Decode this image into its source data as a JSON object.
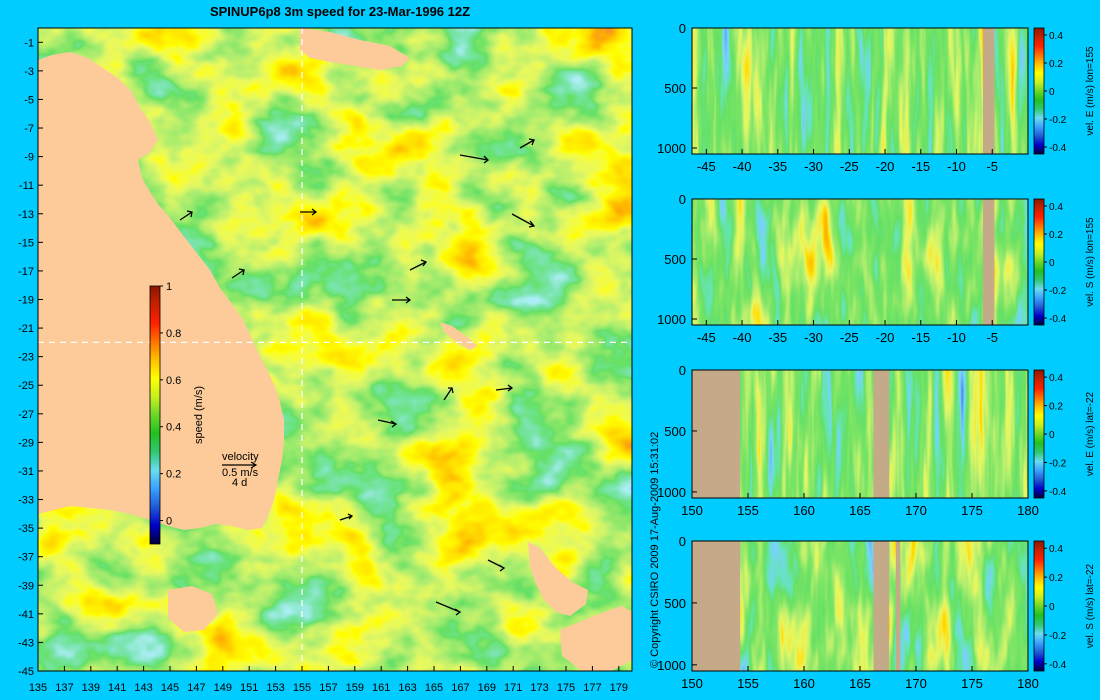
{
  "title": "SPINUP6p8 3m speed for 23-Mar-1996 12Z",
  "copyright": "© Copyright CSIRO 2009   17-Aug-2009 15:31:02",
  "colors": {
    "background": "#00ccff",
    "land": "#fccb99",
    "section_land": "#c4aa88",
    "section_axis": "#000000"
  },
  "colormap": [
    "#00003a",
    "#0000c8",
    "#1e5ad8",
    "#3aa0ff",
    "#6adcf0",
    "#30c870",
    "#22c020",
    "#6cd828",
    "#c8f020",
    "#ffff00",
    "#ffc000",
    "#ff7000",
    "#ff2000",
    "#c82000",
    "#8a1800"
  ],
  "chart_data": [
    {
      "type": "heatmap",
      "name": "map",
      "title": "SPINUP6p8 3m speed for 23-Mar-1996 12Z",
      "xlim": [
        135,
        180
      ],
      "ylim": [
        -45,
        0
      ],
      "xticks": [
        "135",
        "137",
        "139",
        "141",
        "143",
        "145",
        "147",
        "149",
        "151",
        "153",
        "155",
        "157",
        "159",
        "161",
        "163",
        "165",
        "167",
        "169",
        "171",
        "173",
        "175",
        "177",
        "179"
      ],
      "yticks": [
        "-1",
        "-3",
        "-5",
        "-7",
        "-9",
        "-11",
        "-13",
        "-15",
        "-17",
        "-19",
        "-21",
        "-23",
        "-25",
        "-27",
        "-29",
        "-31",
        "-33",
        "-35",
        "-37",
        "-39",
        "-41",
        "-43",
        "-45"
      ],
      "section_lines": {
        "lon": 155,
        "lat": -22
      },
      "colorbar": {
        "label": "speed (m/s)",
        "ticks": [
          "1",
          "0.8",
          "0.6",
          "0.4",
          "0.2",
          "0"
        ],
        "range": [
          -0.1,
          1
        ]
      },
      "vector_key": {
        "label": "velocity",
        "speed": "0.5 m/s",
        "time": "4 d"
      }
    },
    {
      "type": "heatmap",
      "name": "vel. E (m/s) lon=155",
      "xlim": [
        -47,
        0
      ],
      "ylim": [
        1050,
        0
      ],
      "xticks": [
        "-45",
        "-40",
        "-35",
        "-30",
        "-25",
        "-20",
        "-15",
        "-10",
        "-5"
      ],
      "yticks": [
        "0",
        "500",
        "1000"
      ],
      "colorbar": {
        "label": "vel. E (m/s) lon=155",
        "ticks": [
          "0.4",
          "0.2",
          "0",
          "-0.2",
          "-0.4"
        ],
        "range": [
          -0.45,
          0.45
        ]
      }
    },
    {
      "type": "heatmap",
      "name": "vel. S (m/s) lon=155",
      "xlim": [
        -47,
        0
      ],
      "ylim": [
        1050,
        0
      ],
      "xticks": [
        "-45",
        "-40",
        "-35",
        "-30",
        "-25",
        "-20",
        "-15",
        "-10",
        "-5"
      ],
      "yticks": [
        "0",
        "500",
        "1000"
      ],
      "colorbar": {
        "label": "vel. S (m/s) lon=155",
        "ticks": [
          "0.4",
          "0.2",
          "0",
          "-0.2",
          "-0.4"
        ],
        "range": [
          -0.45,
          0.45
        ]
      }
    },
    {
      "type": "heatmap",
      "name": "vel. E (m/s) lat=-22",
      "xlim": [
        150,
        180
      ],
      "ylim": [
        1050,
        0
      ],
      "xticks": [
        "150",
        "155",
        "160",
        "165",
        "170",
        "175",
        "180"
      ],
      "yticks": [
        "0",
        "500",
        "1000"
      ],
      "colorbar": {
        "label": "vel. E (m/s) lat=-22",
        "ticks": [
          "0.4",
          "0.2",
          "0",
          "-0.2",
          "-0.4"
        ],
        "range": [
          -0.45,
          0.45
        ]
      }
    },
    {
      "type": "heatmap",
      "name": "vel. S (m/s) lat=-22",
      "xlim": [
        150,
        180
      ],
      "ylim": [
        1050,
        0
      ],
      "xticks": [
        "150",
        "155",
        "160",
        "165",
        "170",
        "175",
        "180"
      ],
      "yticks": [
        "0",
        "500",
        "1000"
      ],
      "colorbar": {
        "label": "vel. S (m/s) lat=-22",
        "ticks": [
          "0.4",
          "0.2",
          "0",
          "-0.2",
          "-0.4"
        ],
        "range": [
          -0.45,
          0.45
        ]
      }
    }
  ]
}
